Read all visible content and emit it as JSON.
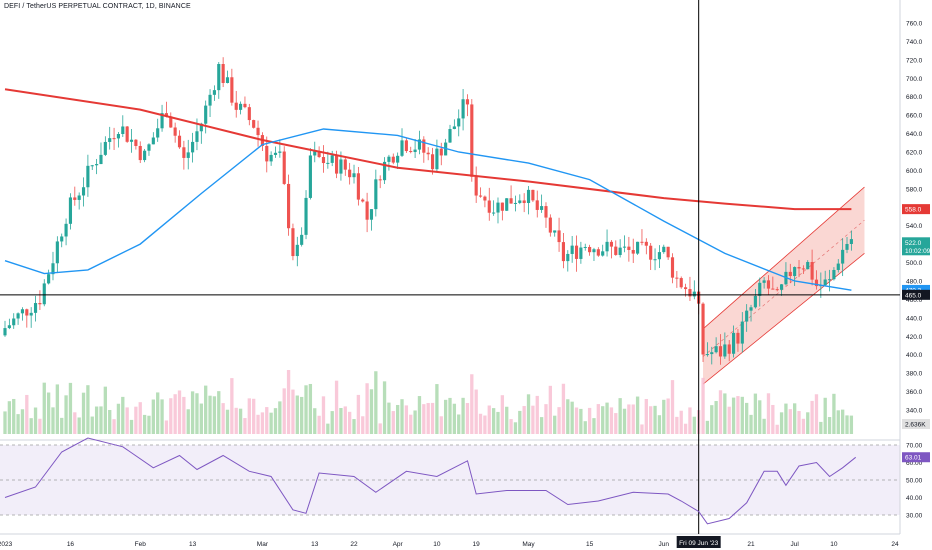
{
  "header": {
    "title": "DEFI / TetherUS PERPETUAL CONTRACT, 1D, BINANCE"
  },
  "colors": {
    "up": "#26a69a",
    "down": "#ef5350",
    "ma_slow": "#e53935",
    "ma_fast": "#2196f3",
    "rsi": "#7e57c2",
    "channel": "#f28b82",
    "crosshair": "#000000"
  },
  "axis": {
    "price_ticks": [
      "760.0",
      "740.0",
      "720.0",
      "700.0",
      "680.0",
      "660.0",
      "640.0",
      "620.0",
      "600.0",
      "580.0",
      "560.0",
      "540.0",
      "520.0",
      "500.0",
      "480.0",
      "460.0",
      "440.0",
      "420.0",
      "400.0",
      "380.0",
      "360.0",
      "340.0"
    ],
    "rsi_ticks": [
      "70.00",
      "60.00",
      "50.00",
      "40.00",
      "30.00"
    ],
    "x_ticks": [
      "2023",
      "16",
      "Feb",
      "13",
      "Mar",
      "13",
      "22",
      "Apr",
      "10",
      "19",
      "May",
      "15",
      "Jun",
      "21",
      "Jul",
      "10",
      "24"
    ]
  },
  "tags": {
    "ma_slow": "558.0",
    "price": "522.0",
    "countdown": "10:02:09",
    "ma_fast": "470.3",
    "crosshair_price": "465.0",
    "volume": "2.636K",
    "rsi": "63.01",
    "crosshair_date": "Fri 09 Jun '23"
  },
  "chart_data": {
    "type": "candlestick",
    "title": "DEFI / TetherUS PERPETUAL CONTRACT, 1D, BINANCE",
    "ylim": [
      340,
      760
    ],
    "x_range": [
      "2023-01-01",
      "2023-07-24"
    ],
    "anchors": [
      {
        "date": "2023-01-01",
        "close": 425
      },
      {
        "date": "2023-01-10",
        "close": 462
      },
      {
        "date": "2023-01-13",
        "close": 505
      },
      {
        "date": "2023-01-16",
        "close": 552
      },
      {
        "date": "2023-01-19",
        "close": 578
      },
      {
        "date": "2023-01-24",
        "close": 622
      },
      {
        "date": "2023-01-28",
        "close": 650
      },
      {
        "date": "2023-02-03",
        "close": 615
      },
      {
        "date": "2023-02-08",
        "close": 668
      },
      {
        "date": "2023-02-12",
        "close": 610
      },
      {
        "date": "2023-02-16",
        "close": 652
      },
      {
        "date": "2023-02-20",
        "close": 712
      },
      {
        "date": "2023-02-24",
        "close": 670
      },
      {
        "date": "2023-02-28",
        "close": 650
      },
      {
        "date": "2023-03-03",
        "close": 618
      },
      {
        "date": "2023-03-06",
        "close": 612
      },
      {
        "date": "2023-03-09",
        "close": 512
      },
      {
        "date": "2023-03-10",
        "close": 510
      },
      {
        "date": "2023-03-12",
        "close": 560
      },
      {
        "date": "2023-03-13",
        "close": 615
      },
      {
        "date": "2023-03-20",
        "close": 605
      },
      {
        "date": "2023-03-23",
        "close": 595
      },
      {
        "date": "2023-03-26",
        "close": 548
      },
      {
        "date": "2023-03-29",
        "close": 600
      },
      {
        "date": "2023-04-03",
        "close": 632
      },
      {
        "date": "2023-04-07",
        "close": 625
      },
      {
        "date": "2023-04-10",
        "close": 610
      },
      {
        "date": "2023-04-14",
        "close": 640
      },
      {
        "date": "2023-04-18",
        "close": 676
      },
      {
        "date": "2023-04-19",
        "close": 585
      },
      {
        "date": "2023-04-24",
        "close": 560
      },
      {
        "date": "2023-05-01",
        "close": 575
      },
      {
        "date": "2023-05-06",
        "close": 545
      },
      {
        "date": "2023-05-10",
        "close": 505
      },
      {
        "date": "2023-05-15",
        "close": 520
      },
      {
        "date": "2023-05-20",
        "close": 515
      },
      {
        "date": "2023-05-25",
        "close": 512
      },
      {
        "date": "2023-05-29",
        "close": 512
      },
      {
        "date": "2023-06-02",
        "close": 512
      },
      {
        "date": "2023-06-05",
        "close": 482
      },
      {
        "date": "2023-06-09",
        "close": 465
      },
      {
        "date": "2023-06-10",
        "close": 445
      },
      {
        "date": "2023-06-11",
        "close": 402
      },
      {
        "date": "2023-06-15",
        "close": 403
      },
      {
        "date": "2023-06-19",
        "close": 420
      },
      {
        "date": "2023-06-22",
        "close": 450
      },
      {
        "date": "2023-06-25",
        "close": 478
      },
      {
        "date": "2023-06-28",
        "close": 460
      },
      {
        "date": "2023-07-02",
        "close": 500
      },
      {
        "date": "2023-07-05",
        "close": 498
      },
      {
        "date": "2023-07-07",
        "close": 475
      },
      {
        "date": "2023-07-10",
        "close": 478
      },
      {
        "date": "2023-07-12",
        "close": 505
      },
      {
        "date": "2023-07-14",
        "close": 522
      }
    ],
    "ma_slow": [
      {
        "date": "2023-01-01",
        "y": 688
      },
      {
        "date": "2023-02-01",
        "y": 666
      },
      {
        "date": "2023-03-01",
        "y": 633
      },
      {
        "date": "2023-04-01",
        "y": 603
      },
      {
        "date": "2023-05-01",
        "y": 588
      },
      {
        "date": "2023-06-01",
        "y": 570
      },
      {
        "date": "2023-06-15",
        "y": 564
      },
      {
        "date": "2023-07-01",
        "y": 558
      },
      {
        "date": "2023-07-14",
        "y": 558
      }
    ],
    "ma_fast": [
      {
        "date": "2023-01-01",
        "y": 502
      },
      {
        "date": "2023-01-10",
        "y": 488
      },
      {
        "date": "2023-01-20",
        "y": 492
      },
      {
        "date": "2023-02-01",
        "y": 520
      },
      {
        "date": "2023-02-15",
        "y": 575
      },
      {
        "date": "2023-03-01",
        "y": 628
      },
      {
        "date": "2023-03-15",
        "y": 645
      },
      {
        "date": "2023-04-01",
        "y": 638
      },
      {
        "date": "2023-04-15",
        "y": 620
      },
      {
        "date": "2023-05-01",
        "y": 608
      },
      {
        "date": "2023-05-15",
        "y": 590
      },
      {
        "date": "2023-06-01",
        "y": 545
      },
      {
        "date": "2023-06-15",
        "y": 510
      },
      {
        "date": "2023-07-01",
        "y": 480
      },
      {
        "date": "2023-07-14",
        "y": 470
      }
    ],
    "channel": {
      "lower": [
        {
          "date": "2023-06-10",
          "y": 368
        },
        {
          "date": "2023-07-17",
          "y": 510
        }
      ],
      "upper": [
        {
          "date": "2023-06-10",
          "y": 428
        },
        {
          "date": "2023-07-17",
          "y": 582
        }
      ]
    },
    "crosshair": {
      "date": "2023-06-09",
      "price": 465
    },
    "volume_max_label": "2.636K",
    "rsi": {
      "ylim": [
        20,
        80
      ],
      "levels": [
        30,
        50,
        70
      ],
      "points": [
        {
          "date": "2023-01-01",
          "y": 40
        },
        {
          "date": "2023-01-08",
          "y": 46
        },
        {
          "date": "2023-01-14",
          "y": 66
        },
        {
          "date": "2023-01-20",
          "y": 74
        },
        {
          "date": "2023-01-28",
          "y": 69
        },
        {
          "date": "2023-02-04",
          "y": 57
        },
        {
          "date": "2023-02-10",
          "y": 64
        },
        {
          "date": "2023-02-14",
          "y": 56
        },
        {
          "date": "2023-02-20",
          "y": 64
        },
        {
          "date": "2023-02-26",
          "y": 55
        },
        {
          "date": "2023-03-03",
          "y": 52
        },
        {
          "date": "2023-03-08",
          "y": 33
        },
        {
          "date": "2023-03-11",
          "y": 31
        },
        {
          "date": "2023-03-14",
          "y": 54
        },
        {
          "date": "2023-03-22",
          "y": 52
        },
        {
          "date": "2023-03-27",
          "y": 43
        },
        {
          "date": "2023-04-03",
          "y": 55
        },
        {
          "date": "2023-04-10",
          "y": 52
        },
        {
          "date": "2023-04-17",
          "y": 61
        },
        {
          "date": "2023-04-19",
          "y": 42
        },
        {
          "date": "2023-04-26",
          "y": 44
        },
        {
          "date": "2023-05-05",
          "y": 44
        },
        {
          "date": "2023-05-10",
          "y": 36
        },
        {
          "date": "2023-05-17",
          "y": 38
        },
        {
          "date": "2023-05-25",
          "y": 43
        },
        {
          "date": "2023-06-02",
          "y": 42
        },
        {
          "date": "2023-06-05",
          "y": 38
        },
        {
          "date": "2023-06-09",
          "y": 32
        },
        {
          "date": "2023-06-11",
          "y": 25
        },
        {
          "date": "2023-06-16",
          "y": 28
        },
        {
          "date": "2023-06-20",
          "y": 37
        },
        {
          "date": "2023-06-24",
          "y": 55
        },
        {
          "date": "2023-06-27",
          "y": 55
        },
        {
          "date": "2023-06-29",
          "y": 47
        },
        {
          "date": "2023-07-02",
          "y": 58
        },
        {
          "date": "2023-07-06",
          "y": 60
        },
        {
          "date": "2023-07-09",
          "y": 52
        },
        {
          "date": "2023-07-12",
          "y": 57
        },
        {
          "date": "2023-07-15",
          "y": 63
        }
      ]
    }
  }
}
